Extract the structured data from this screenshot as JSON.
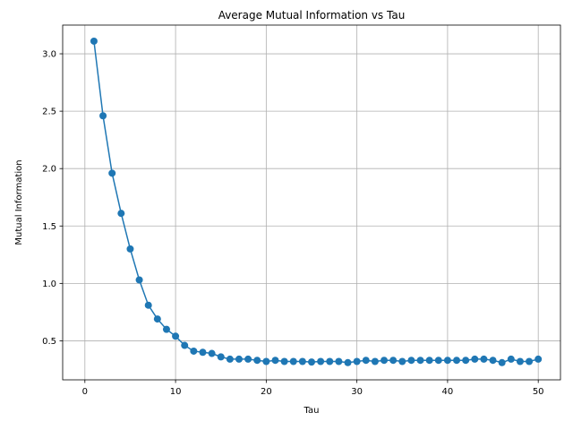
{
  "chart_data": {
    "type": "line",
    "title": "Average Mutual Information vs Tau",
    "xlabel": "Tau",
    "ylabel": "Mutual Information",
    "xlim": [
      -2.45,
      52.45
    ],
    "ylim": [
      0.16,
      3.25
    ],
    "xticks": [
      0,
      10,
      20,
      30,
      40,
      50
    ],
    "yticks": [
      0.5,
      1.0,
      1.5,
      2.0,
      2.5,
      3.0
    ],
    "xtick_labels": [
      "0",
      "10",
      "20",
      "30",
      "40",
      "50"
    ],
    "ytick_labels": [
      "0.5",
      "1.0",
      "1.5",
      "2.0",
      "2.5",
      "3.0"
    ],
    "grid": true,
    "line_color": "#1f77b4",
    "marker": "circle",
    "series": [
      {
        "x": [
          1,
          2,
          3,
          4,
          5,
          6,
          7,
          8,
          9,
          10,
          11,
          12,
          13,
          14,
          15,
          16,
          17,
          18,
          19,
          20,
          21,
          22,
          23,
          24,
          25,
          26,
          27,
          28,
          29,
          30,
          31,
          32,
          33,
          34,
          35,
          36,
          37,
          38,
          39,
          40,
          41,
          42,
          43,
          44,
          45,
          46,
          47,
          48,
          49,
          50
        ],
        "values": [
          3.11,
          2.46,
          1.96,
          1.61,
          1.3,
          1.03,
          0.81,
          0.69,
          0.6,
          0.54,
          0.46,
          0.41,
          0.4,
          0.39,
          0.36,
          0.34,
          0.34,
          0.34,
          0.33,
          0.32,
          0.33,
          0.32,
          0.32,
          0.32,
          0.315,
          0.32,
          0.32,
          0.32,
          0.31,
          0.32,
          0.33,
          0.32,
          0.33,
          0.33,
          0.32,
          0.33,
          0.33,
          0.33,
          0.33,
          0.33,
          0.33,
          0.33,
          0.34,
          0.34,
          0.33,
          0.31,
          0.34,
          0.32,
          0.32,
          0.34
        ]
      }
    ]
  }
}
